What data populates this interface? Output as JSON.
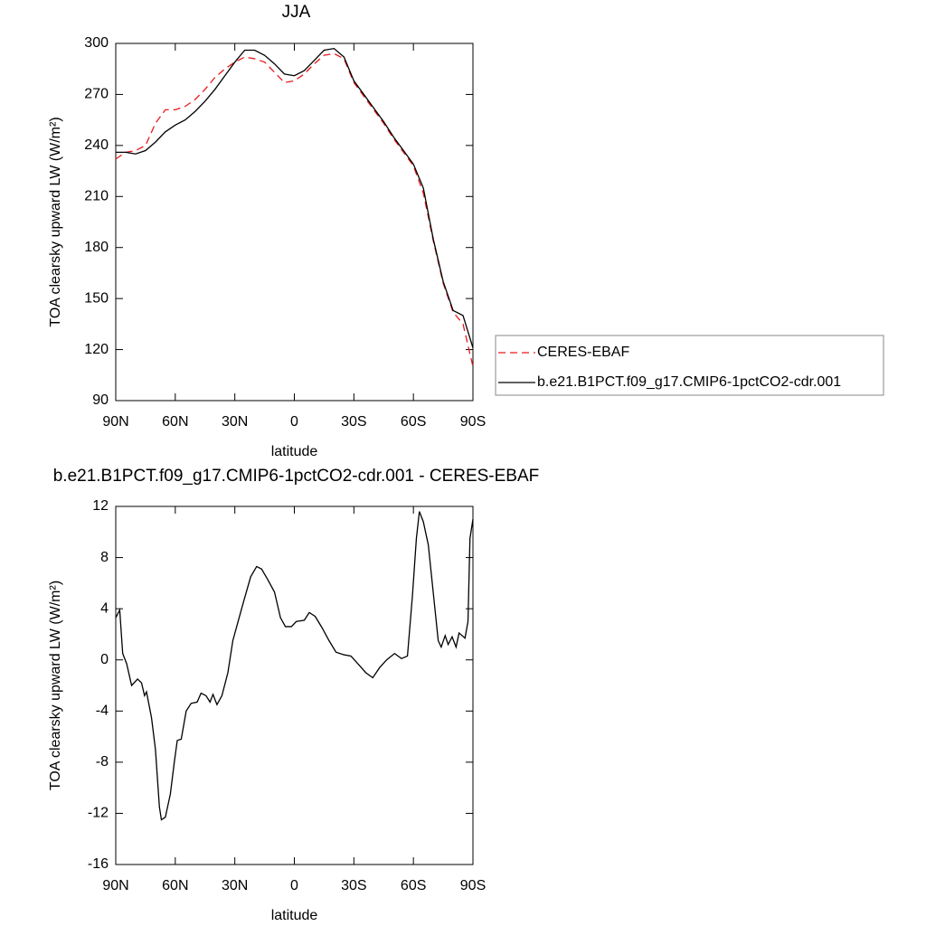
{
  "chart_data": [
    {
      "type": "line",
      "title": "JJA",
      "x_label": "latitude",
      "y_label": "TOA clearsky upward LW (W/m²)",
      "x": [
        90,
        85,
        80,
        75,
        70,
        65,
        60,
        55,
        50,
        45,
        40,
        35,
        30,
        25,
        20,
        15,
        10,
        5,
        0,
        -5,
        -10,
        -15,
        -20,
        -25,
        -30,
        -35,
        -40,
        -45,
        -50,
        -55,
        -60,
        -65,
        -70,
        -75,
        -80,
        -85,
        -90
      ],
      "series": [
        {
          "name": "CERES-EBAF",
          "color": "#e8191c",
          "dashed": true,
          "values": [
            232,
            236,
            237,
            240,
            253,
            261,
            261,
            263,
            267,
            273,
            280,
            285,
            289,
            292,
            291,
            289,
            283,
            277,
            278,
            282,
            288,
            293,
            294,
            291,
            277,
            269,
            261,
            253,
            244,
            236,
            228,
            212,
            184,
            159,
            142,
            135,
            110
          ]
        },
        {
          "name": "b.e21.B1PCT.f09_g17.CMIP6-1pctCO2-cdr.001",
          "color": "#000000",
          "dashed": false,
          "values": [
            236,
            236,
            235,
            237,
            242,
            248,
            252,
            255,
            260,
            266,
            273,
            281,
            289,
            296,
            296,
            293,
            288,
            282,
            281,
            284,
            290,
            296,
            297,
            292,
            278,
            270,
            262,
            254,
            245,
            237,
            229,
            215,
            185,
            160,
            143,
            140,
            121
          ]
        }
      ],
      "xlim": [
        90,
        -90
      ],
      "xticks": [
        {
          "value": 90,
          "label": "90N"
        },
        {
          "value": 60,
          "label": "60N"
        },
        {
          "value": 30,
          "label": "30N"
        },
        0,
        {
          "value": -30,
          "label": "30S"
        },
        {
          "value": -60,
          "label": "60S"
        },
        {
          "value": -90,
          "label": "90S"
        }
      ],
      "ylim": [
        90,
        300
      ],
      "yticks": [
        90,
        120,
        150,
        180,
        210,
        240,
        270,
        300
      ],
      "legend_position": "right"
    },
    {
      "type": "line",
      "title": "b.e21.B1PCT.f09_g17.CMIP6-1pctCO2-cdr.001 - CERES-EBAF",
      "x_label": "latitude",
      "y_label": "TOA clearsky upward LW (W/m²)",
      "x": [
        90,
        88,
        86.5,
        84.5,
        82,
        79,
        77,
        75.5,
        74.5,
        72,
        70,
        68,
        67,
        65,
        62.5,
        60.5,
        59,
        57,
        54.5,
        52,
        49,
        47,
        44.5,
        42.5,
        41,
        39,
        36.5,
        33.5,
        31,
        28,
        25.5,
        22,
        19,
        16.5,
        13.5,
        10,
        7,
        4.5,
        1.5,
        -1,
        -5,
        -7.5,
        -10.5,
        -14,
        -17.5,
        -21,
        -25,
        -28.5,
        -32,
        -36,
        -39.5,
        -43,
        -46.5,
        -50.5,
        -54,
        -57,
        -59.5,
        -61.5,
        -63,
        -65,
        -67.5,
        -70.5,
        -72.5,
        -74,
        -76,
        -77.5,
        -79.5,
        -81.5,
        -83,
        -86,
        -87.5,
        -88.5,
        -90
      ],
      "values": [
        3.3,
        3.9,
        0.5,
        -0.3,
        -2.0,
        -1.5,
        -1.8,
        -2.8,
        -2.5,
        -4.5,
        -7.0,
        -11.5,
        -12.5,
        -12.3,
        -10.5,
        -8.0,
        -6.3,
        -6.2,
        -4.0,
        -3.4,
        -3.3,
        -2.6,
        -2.8,
        -3.3,
        -2.7,
        -3.5,
        -2.8,
        -1.0,
        1.5,
        3.2,
        4.6,
        6.5,
        7.3,
        7.1,
        6.3,
        5.3,
        3.3,
        2.6,
        2.6,
        3.0,
        3.1,
        3.7,
        3.4,
        2.5,
        1.5,
        0.6,
        0.4,
        0.3,
        -0.3,
        -1.0,
        -1.4,
        -0.6,
        0,
        0.5,
        0.1,
        0.3,
        5.0,
        9.5,
        11.6,
        10.8,
        9.0,
        4.5,
        1.5,
        1.0,
        1.9,
        1.2,
        1.8,
        1.0,
        2.1,
        1.7,
        3.0,
        9.5,
        11.0
      ],
      "color": "#000000",
      "xlim": [
        90,
        -90
      ],
      "xticks": [
        {
          "value": 90,
          "label": "90N"
        },
        {
          "value": 60,
          "label": "60N"
        },
        {
          "value": 30,
          "label": "30N"
        },
        0,
        {
          "value": -30,
          "label": "30S"
        },
        {
          "value": -60,
          "label": "60S"
        },
        {
          "value": -90,
          "label": "90S"
        }
      ],
      "ylim": [
        -16,
        12
      ],
      "yticks": [
        -16,
        -12,
        -8,
        -4,
        0,
        4,
        8,
        12
      ]
    }
  ]
}
